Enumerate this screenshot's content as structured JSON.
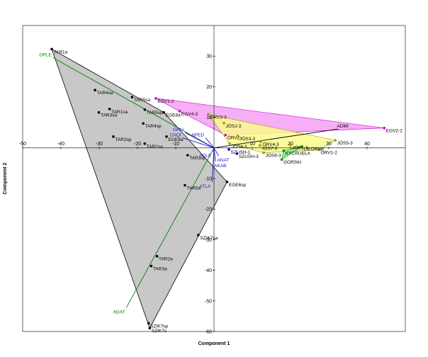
{
  "chart_data": {
    "type": "scatter",
    "xlabel": "Component 1",
    "ylabel": "Component 2",
    "xlim": [
      -50,
      50
    ],
    "ylim": [
      -60,
      40
    ],
    "x_ticks": [
      -50,
      -40,
      -30,
      -20,
      -10,
      10,
      20,
      30,
      40
    ],
    "y_ticks": [
      -60,
      -50,
      -40,
      -30,
      -20,
      -10,
      10,
      20,
      30
    ],
    "grid": false,
    "hull_colors": {
      "gray": "#c8c8c8",
      "magenta": "#f5a0f5",
      "yellow": "#fafa8c",
      "green": "#7ce67c",
      "cyan": "#a0e6f5",
      "orange": "#f5cfa0"
    },
    "series": [
      {
        "color": "#000000",
        "hull": "gray",
        "points": [
          {
            "label": "TAR1a",
            "x": -42.4,
            "y": 32.3
          },
          {
            "label": "TAR4sa",
            "x": -31.1,
            "y": 18.9
          },
          {
            "label": "TAR1sa",
            "x": -27.3,
            "y": 12.7
          },
          {
            "label": "TAR3sa",
            "x": -30.1,
            "y": 11.6
          },
          {
            "label": "TAR5sa",
            "x": -21.4,
            "y": 16.6
          },
          {
            "label": "TAR5sp",
            "x": -18.1,
            "y": 12.5
          },
          {
            "label": "TAR4sp",
            "x": -18.5,
            "y": 8.0
          },
          {
            "label": "TAR2sp",
            "x": -26.3,
            "y": 3.7
          },
          {
            "label": "TAR2sa",
            "x": -18.1,
            "y": 1.4
          },
          {
            "label": "EGE6a",
            "x": -12.4,
            "y": 3.7
          },
          {
            "label": "EGE8a",
            "x": -13.1,
            "y": 11.6
          },
          {
            "label": "TAR3sp",
            "x": -6.9,
            "y": -2.4
          },
          {
            "label": "TAR5a",
            "x": -7.6,
            "y": -12.2
          },
          {
            "label": "EGE6sp",
            "x": 3.4,
            "y": -11.1
          },
          {
            "label": "SZIK7sa",
            "x": -4.1,
            "y": -28.5
          },
          {
            "label": "TAR2a",
            "x": -14.9,
            "y": -35.4
          },
          {
            "label": "TAR3a",
            "x": -16.4,
            "y": -38.6
          },
          {
            "label": "SZIK7sp",
            "x": -17.1,
            "y": -57.3
          },
          {
            "label": "SZIK7s",
            "x": -16.8,
            "y": -58.9
          }
        ]
      },
      {
        "color": "#cc00cc",
        "hull": "magenta",
        "points": [
          {
            "label": "EGV1-2",
            "x": -15.2,
            "y": 16.2
          },
          {
            "label": "EGV2-2",
            "x": 44.5,
            "y": 6.5
          },
          {
            "label": "EGV4-3",
            "x": -9.0,
            "y": 12.0
          },
          {
            "label": "ÖRV2-",
            "x": 3.0,
            "y": 4.2
          }
        ]
      },
      {
        "color": "#999900",
        "hull": "yellow",
        "points": [
          {
            "label": "ÖRV3-3",
            "x": -1.5,
            "y": 11.0
          },
          {
            "label": "JÓSJ-3",
            "x": 2.6,
            "y": 8.1
          },
          {
            "label": "JÓS3-3",
            "x": 6.2,
            "y": 3.9
          },
          {
            "label": "JÓS4-3",
            "x": 4.1,
            "y": 1.4
          },
          {
            "label": "ÖRV4-3",
            "x": 12.2,
            "y": 2.0
          },
          {
            "label": "JÓS7-3",
            "x": 12.0,
            "y": 0.8
          },
          {
            "label": "JÓS1-3",
            "x": 20.0,
            "y": 1.0
          },
          {
            "label": "JÓS5-3",
            "x": 31.7,
            "y": 2.5
          },
          {
            "label": "JÓS6-3",
            "x": 13.0,
            "y": -1.6
          },
          {
            "label": "ÖRV1-2",
            "x": 27.4,
            "y": -0.6
          }
        ]
      },
      {
        "color": "#009900",
        "hull": "green",
        "points": [
          {
            "label": "GORSKI",
            "x": 17.7,
            "y": -3.8
          },
          {
            "label": "KYCRUELA",
            "x": 18.2,
            "y": -0.9
          },
          {
            "label": "LIKORNA",
            "x": 23.0,
            "y": 0.5
          }
        ]
      },
      {
        "color": "#0000cc",
        "hull": "cyan",
        "points": [
          {
            "label": "SZUSH-3",
            "x": 6.0,
            "y": -1.9
          },
          {
            "label": "SZUSH-1",
            "x": 3.9,
            "y": -0.5
          }
        ]
      }
    ],
    "vectors": [
      {
        "label": "OPLE",
        "x": -42.1,
        "y": 29.5,
        "color": "#008000"
      },
      {
        "label": "ADAT",
        "x": -22.9,
        "y": -52.2,
        "color": "#008000"
      },
      {
        "label": "ADMI",
        "x": 32.5,
        "y": 6.2,
        "color": "#000000"
      },
      {
        "label": "OPLI",
        "x": -7.6,
        "y": 5.0,
        "color": "#2020cc"
      },
      {
        "label": "CNQI",
        "x": -8.2,
        "y": 3.3,
        "color": "#2020cc"
      },
      {
        "label": "APED",
        "x": -2.2,
        "y": 3.3,
        "color": "#2020cc"
      },
      {
        "label": "ATLA",
        "x": -0.5,
        "y": -11.2,
        "color": "#2020cc"
      },
      {
        "label": "AKAB",
        "x": 0.4,
        "y": -4.4,
        "color": "#2020cc"
      },
      {
        "label": "ANAT",
        "x": 1.2,
        "y": -2.6,
        "color": "#2020cc"
      },
      {
        "label": "ADLE",
        "x": -0.3,
        "y": -1.1,
        "color": "#2020cc"
      }
    ]
  }
}
